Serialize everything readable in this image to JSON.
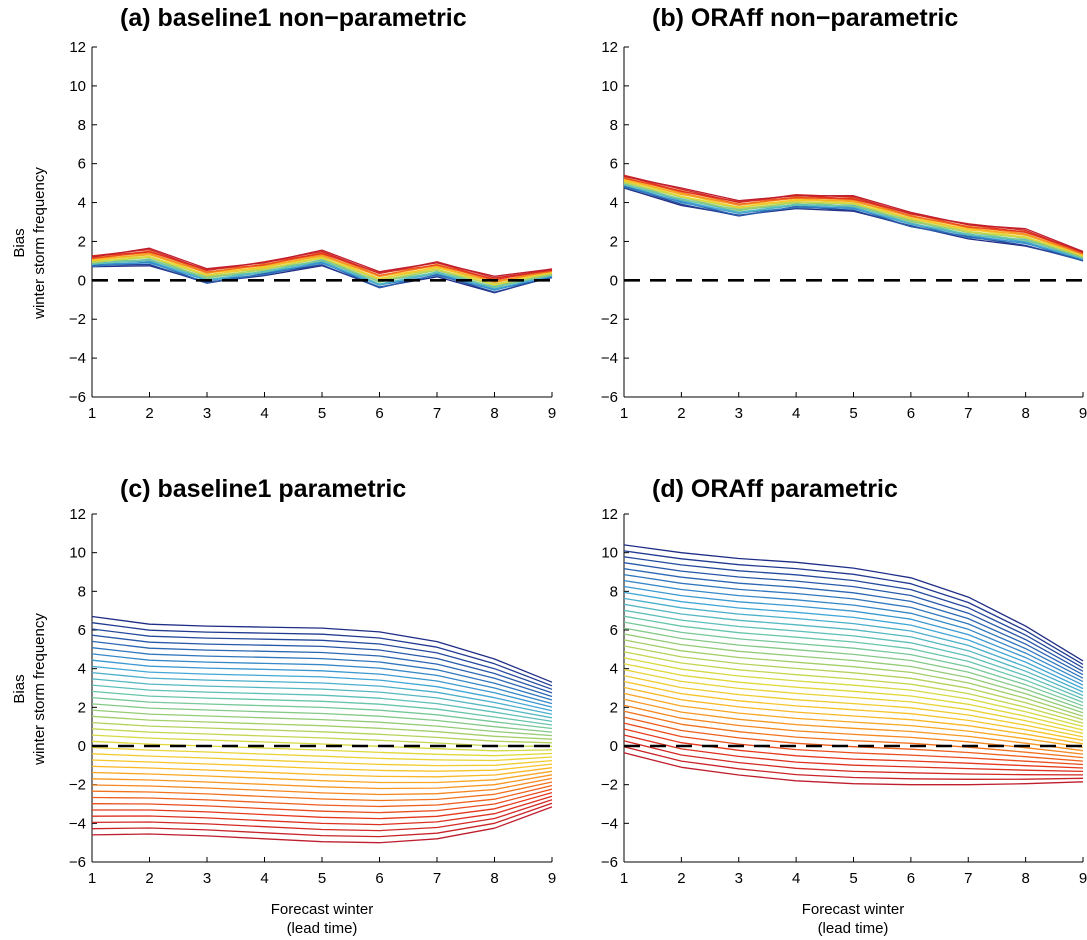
{
  "figure": {
    "ylabel_line1": "Bias",
    "ylabel_line2": "winter storm frequency",
    "xlabel_line1": "Forecast winter",
    "xlabel_line2": "(lead time)"
  },
  "chart_data": [
    {
      "id": "a",
      "type": "line",
      "title": "(a) baseline1 non−parametric",
      "xlim": [
        1,
        9
      ],
      "ylim": [
        -6,
        12
      ],
      "x": [
        1,
        2,
        3,
        4,
        5,
        6,
        7,
        8,
        9
      ],
      "xticks": [
        1,
        2,
        3,
        4,
        5,
        6,
        7,
        8,
        9
      ],
      "yticks": [
        -6,
        -4,
        -2,
        0,
        2,
        4,
        6,
        8,
        10,
        12
      ],
      "yticklabels": [
        "−6",
        "−4",
        "−2",
        "0",
        "2",
        "4",
        "6",
        "8",
        "10",
        "12"
      ],
      "show_ylabel": true,
      "show_xlabel": false,
      "reference_line": {
        "y": 0,
        "style": "dashed",
        "color": "#000000"
      },
      "n_members": 22,
      "lowest_member": [
        0.7,
        0.8,
        -0.15,
        0.25,
        0.8,
        -0.4,
        0.2,
        -0.6,
        0.15
      ],
      "highest_member": [
        1.25,
        1.6,
        0.6,
        0.95,
        1.5,
        0.45,
        0.95,
        0.15,
        0.6
      ],
      "color_order": "low-blue-to-high-red"
    },
    {
      "id": "b",
      "type": "line",
      "title": "(b) ORAff non−parametric",
      "xlim": [
        1,
        9
      ],
      "ylim": [
        -6,
        12
      ],
      "x": [
        1,
        2,
        3,
        4,
        5,
        6,
        7,
        8,
        9
      ],
      "xticks": [
        1,
        2,
        3,
        4,
        5,
        6,
        7,
        8,
        9
      ],
      "yticks": [
        -6,
        -4,
        -2,
        0,
        2,
        4,
        6,
        8,
        10,
        12
      ],
      "yticklabels": [
        "−6",
        "−4",
        "−2",
        "0",
        "2",
        "4",
        "6",
        "8",
        "10",
        "12"
      ],
      "show_ylabel": false,
      "show_xlabel": false,
      "reference_line": {
        "y": 0,
        "style": "dashed",
        "color": "#000000"
      },
      "n_members": 22,
      "lowest_member": [
        4.75,
        3.9,
        3.3,
        3.7,
        3.6,
        2.75,
        2.15,
        1.8,
        1.0
      ],
      "highest_member": [
        5.4,
        4.7,
        4.1,
        4.4,
        4.3,
        3.5,
        2.9,
        2.6,
        1.5
      ],
      "color_order": "low-blue-to-high-red"
    },
    {
      "id": "c",
      "type": "line",
      "title": "(c) baseline1 parametric",
      "xlim": [
        1,
        9
      ],
      "ylim": [
        -6,
        12
      ],
      "x": [
        1,
        2,
        3,
        4,
        5,
        6,
        7,
        8,
        9
      ],
      "xticks": [
        1,
        2,
        3,
        4,
        5,
        6,
        7,
        8,
        9
      ],
      "yticks": [
        -6,
        -4,
        -2,
        0,
        2,
        4,
        6,
        8,
        10,
        12
      ],
      "yticklabels": [
        "−6",
        "−4",
        "−2",
        "0",
        "2",
        "4",
        "6",
        "8",
        "10",
        "12"
      ],
      "show_ylabel": true,
      "show_xlabel": true,
      "reference_line": {
        "y": 0,
        "style": "dashed",
        "color": "#000000"
      },
      "n_members": 36,
      "highest_member": [
        6.7,
        6.3,
        6.2,
        6.15,
        6.1,
        5.9,
        5.4,
        4.5,
        3.3
      ],
      "lowest_member": [
        -4.6,
        -4.55,
        -4.65,
        -4.8,
        -4.95,
        -5.0,
        -4.8,
        -4.25,
        -3.15
      ],
      "color_order": "high-blue-to-low-red"
    },
    {
      "id": "d",
      "type": "line",
      "title": "(d) ORAff parametric",
      "xlim": [
        1,
        9
      ],
      "ylim": [
        -6,
        12
      ],
      "x": [
        1,
        2,
        3,
        4,
        5,
        6,
        7,
        8,
        9
      ],
      "xticks": [
        1,
        2,
        3,
        4,
        5,
        6,
        7,
        8,
        9
      ],
      "yticks": [
        -6,
        -4,
        -2,
        0,
        2,
        4,
        6,
        8,
        10,
        12
      ],
      "yticklabels": [
        "−6",
        "−4",
        "−2",
        "0",
        "2",
        "4",
        "6",
        "8",
        "10",
        "12"
      ],
      "show_ylabel": false,
      "show_xlabel": true,
      "reference_line": {
        "y": 0,
        "style": "dashed",
        "color": "#000000"
      },
      "n_members": 36,
      "highest_member": [
        10.4,
        10.0,
        9.7,
        9.5,
        9.2,
        8.7,
        7.7,
        6.2,
        4.4
      ],
      "lowest_member": [
        -0.35,
        -1.1,
        -1.5,
        -1.8,
        -1.95,
        -2.0,
        -2.0,
        -1.95,
        -1.85
      ],
      "color_order": "high-blue-to-low-red"
    }
  ],
  "colormap": [
    "#1f2d86",
    "#2b65b2",
    "#3fa5d8",
    "#63c4b0",
    "#9ccc6e",
    "#dcdc3c",
    "#fac228",
    "#f58220",
    "#e6361c",
    "#bf1e2e"
  ]
}
